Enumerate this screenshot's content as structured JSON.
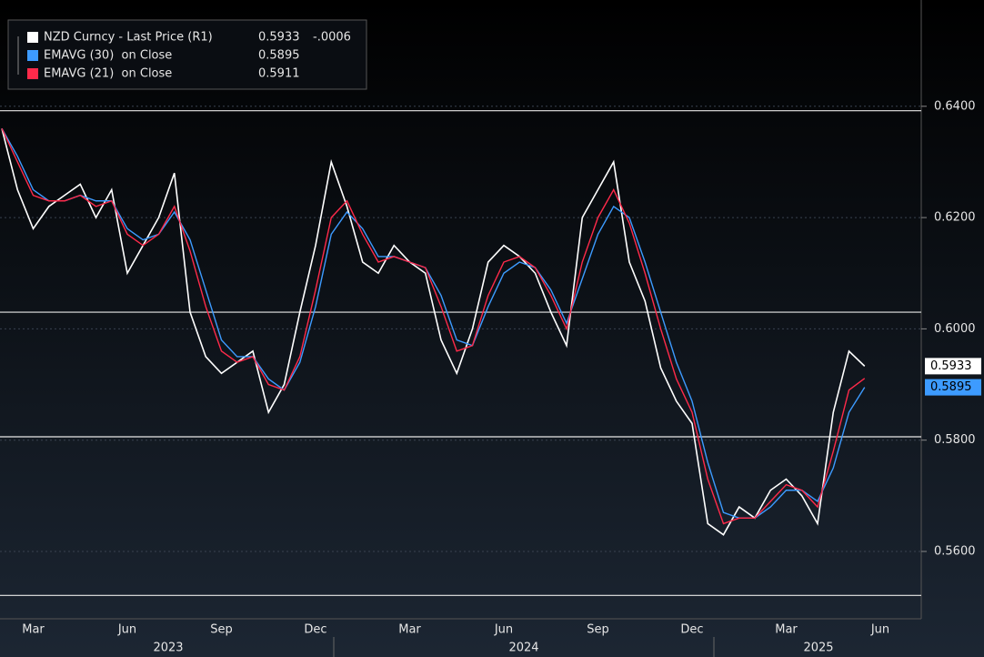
{
  "chart_data": {
    "type": "line",
    "categories": [
      null,
      null,
      "Mar",
      null,
      null,
      null,
      null,
      null,
      "Jun",
      null,
      null,
      null,
      null,
      null,
      "Sep",
      null,
      null,
      null,
      null,
      null,
      "Dec",
      null,
      null,
      null,
      null,
      null,
      "Mar",
      null,
      null,
      null,
      null,
      null,
      "Jun",
      null,
      null,
      null,
      null,
      null,
      "Sep",
      null,
      null,
      null,
      null,
      null,
      "Dec",
      null,
      null,
      null,
      null,
      null,
      "Mar",
      null,
      null,
      null,
      null,
      null,
      "Jun"
    ],
    "year_labels": [
      "2023",
      "2024",
      "2025"
    ],
    "series": [
      {
        "name": "NZD Curncy - Last Price (R1)",
        "color": "#ffffff",
        "values": [
          0.636,
          0.625,
          0.618,
          0.622,
          0.624,
          0.626,
          0.62,
          0.625,
          0.61,
          0.615,
          0.62,
          0.628,
          0.603,
          0.595,
          0.592,
          0.594,
          0.596,
          0.585,
          0.59,
          0.603,
          0.615,
          0.63,
          0.622,
          0.612,
          0.61,
          0.615,
          0.612,
          0.61,
          0.598,
          0.592,
          0.6,
          0.612,
          0.615,
          0.613,
          0.61,
          0.603,
          0.597,
          0.62,
          0.625,
          0.63,
          0.612,
          0.605,
          0.593,
          0.587,
          0.583,
          0.565,
          0.563,
          0.568,
          0.566,
          0.571,
          0.573,
          0.57,
          0.565,
          0.585,
          0.596,
          0.5933,
          null
        ],
        "legend_change": "-.0006"
      },
      {
        "name": "EMAVG (30)  on Close",
        "color": "#3d9bff",
        "values": [
          0.636,
          0.631,
          0.625,
          0.623,
          0.623,
          0.624,
          0.623,
          0.623,
          0.618,
          0.616,
          0.617,
          0.621,
          0.616,
          0.607,
          0.598,
          0.595,
          0.595,
          0.591,
          0.589,
          0.594,
          0.604,
          0.617,
          0.621,
          0.618,
          0.613,
          0.613,
          0.612,
          0.611,
          0.606,
          0.598,
          0.597,
          0.604,
          0.61,
          0.612,
          0.611,
          0.607,
          0.601,
          0.609,
          0.617,
          0.622,
          0.62,
          0.612,
          0.603,
          0.594,
          0.587,
          0.576,
          0.567,
          0.566,
          0.566,
          0.568,
          0.571,
          0.571,
          0.569,
          0.575,
          0.585,
          0.5895,
          null
        ]
      },
      {
        "name": "EMAVG (21)  on Close",
        "color": "#ff2a4a",
        "values": [
          0.636,
          0.63,
          0.624,
          0.623,
          0.623,
          0.624,
          0.622,
          0.623,
          0.617,
          0.615,
          0.617,
          0.622,
          0.614,
          0.604,
          0.596,
          0.594,
          0.595,
          0.59,
          0.589,
          0.595,
          0.607,
          0.62,
          0.623,
          0.617,
          0.612,
          0.613,
          0.612,
          0.611,
          0.604,
          0.596,
          0.597,
          0.606,
          0.612,
          0.613,
          0.611,
          0.606,
          0.6,
          0.612,
          0.62,
          0.625,
          0.619,
          0.61,
          0.6,
          0.591,
          0.585,
          0.573,
          0.565,
          0.566,
          0.566,
          0.569,
          0.572,
          0.571,
          0.568,
          0.578,
          0.589,
          0.5911,
          null
        ]
      }
    ],
    "hlines": [
      0.6392,
      0.603,
      0.5806,
      0.5521
    ],
    "ylim": [
      0.5479,
      0.6591
    ],
    "yticks": [
      {
        "value": 0.56,
        "label": "0.5600"
      },
      {
        "value": 0.58,
        "label": "0.5800"
      },
      {
        "value": 0.6,
        "label": "0.6000"
      },
      {
        "value": 0.62,
        "label": "0.6200"
      },
      {
        "value": 0.64,
        "label": "0.6400"
      }
    ],
    "grid": true
  }
}
